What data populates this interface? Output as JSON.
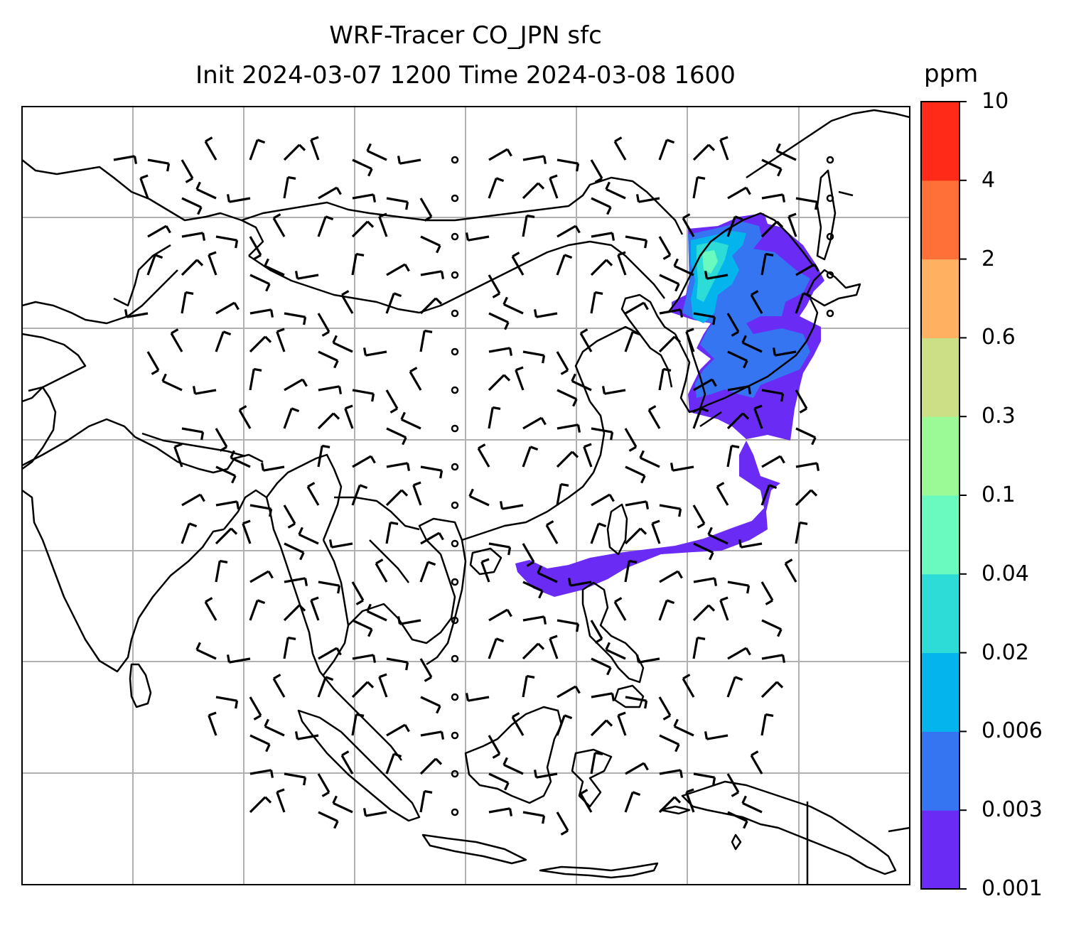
{
  "title": {
    "line1": "WRF-Tracer CO_JPN sfc",
    "line2": "Init 2024-03-07 1200 Time 2024-03-08 1600"
  },
  "colorbar": {
    "unit": "ppm",
    "levels": [
      "0.001",
      "0.003",
      "0.006",
      "0.02",
      "0.04",
      "0.1",
      "0.3",
      "0.6",
      "2",
      "4",
      "10"
    ],
    "colors": [
      "#6a2cf5",
      "#3575f2",
      "#04b4ec",
      "#2ddcd6",
      "#6af9be",
      "#9bf996",
      "#cddf86",
      "#ffb060",
      "#ff7038",
      "#ff2a18"
    ]
  },
  "map": {
    "gridlines": true,
    "gridline_color": "#b0b0b0",
    "coastline_color": "#000000",
    "wind_barb_color": "#000000",
    "tracer_source": "Japan",
    "tracer_min_color": "#6a2cf5"
  }
}
